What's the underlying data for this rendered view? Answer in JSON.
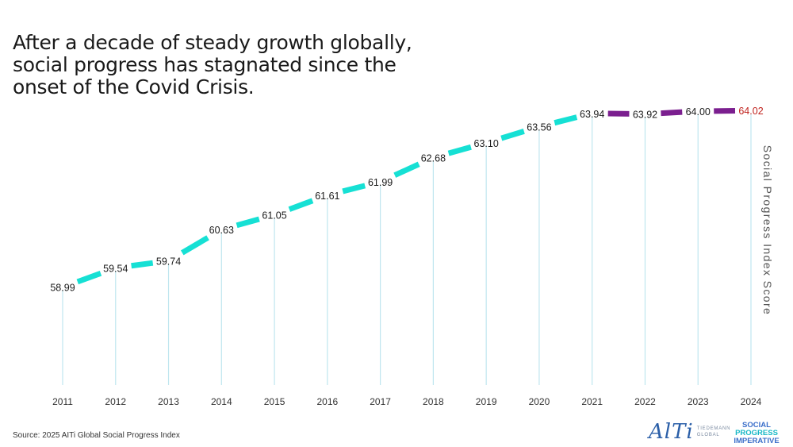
{
  "title_lines": [
    "After a decade of steady growth globally,",
    "social progress has stagnated since the",
    "onset of the Covid Crisis."
  ],
  "chart_data": {
    "type": "line",
    "title": "After a decade of steady growth globally, social progress has stagnated since the onset of the Covid Crisis.",
    "xlabel": "",
    "ylabel": "Social Progress Index Score",
    "categories": [
      "2011",
      "2012",
      "2013",
      "2014",
      "2015",
      "2016",
      "2017",
      "2018",
      "2019",
      "2020",
      "2021",
      "2022",
      "2023",
      "2024"
    ],
    "series": [
      {
        "name": "Social Progress Index Score",
        "values": [
          58.99,
          59.54,
          59.74,
          60.63,
          61.05,
          61.61,
          61.99,
          62.68,
          63.1,
          63.56,
          63.94,
          63.92,
          64.0,
          64.02
        ]
      }
    ],
    "value_labels": [
      "58.99",
      "59.54",
      "59.74",
      "60.63",
      "61.05",
      "61.61",
      "61.99",
      "62.68",
      "63.10",
      "63.56",
      "63.94",
      "63.92",
      "64.00",
      "64.02"
    ],
    "ylim": [
      56.7,
      64.5
    ],
    "grid": false,
    "colors": {
      "growth": "#16e0d4",
      "stagnation": "#7b1f8f",
      "drop_line": "#bfe6ef",
      "label": "#1a1a1a",
      "highlight_label": "#c0221d",
      "axis_text": "#333333"
    },
    "stagnation_start_index": 10,
    "highlight_index": 13
  },
  "source": "Source: 2025 AITi Global Social Progress Index",
  "logos": {
    "alti_word": "AlTi",
    "alti_sub": [
      "TIEDEMANN",
      "GLOBAL"
    ],
    "spi_lines": [
      "SOCIAL",
      "PROGRESS",
      "IMPERATIVE"
    ]
  }
}
